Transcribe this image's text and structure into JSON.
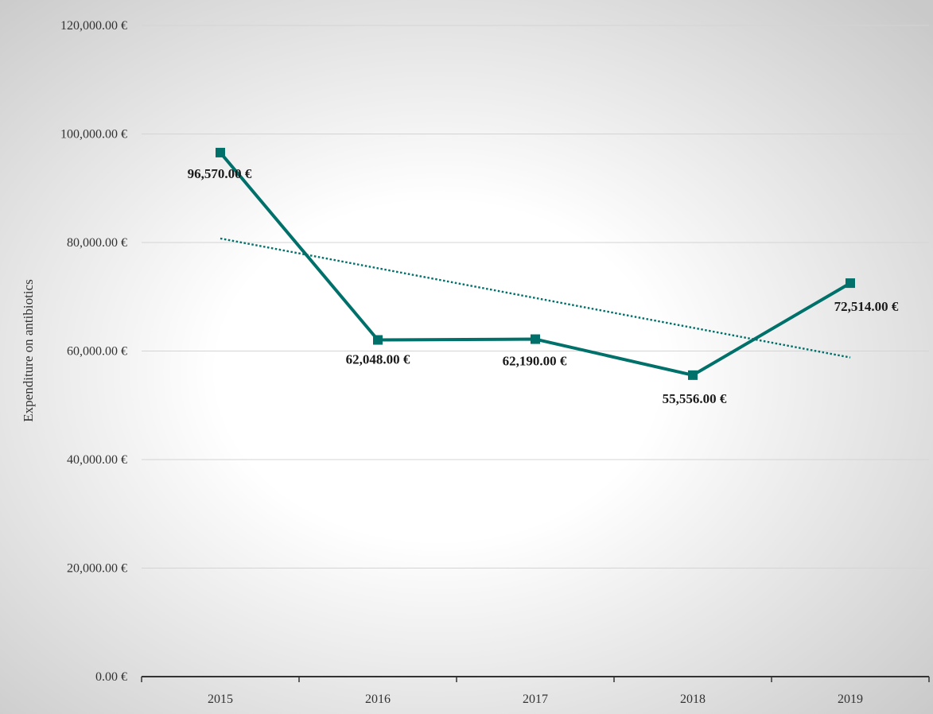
{
  "chart_data": {
    "type": "line",
    "title": "",
    "xlabel": "",
    "ylabel": "Expenditure on antibiotics",
    "categories": [
      "2015",
      "2016",
      "2017",
      "2018",
      "2019"
    ],
    "series": [
      {
        "values": [
          96570,
          62048,
          62190,
          55556,
          72514
        ],
        "data_labels": [
          "96,570.00 €",
          "62,048.00 €",
          "62,190.00 €",
          "55,556.00 €",
          "72,514.00 €"
        ],
        "color": "#00706a",
        "marker": "square"
      }
    ],
    "trendline": {
      "type": "linear",
      "style": "dotted",
      "color": "#00706a",
      "start_value": 80745,
      "end_value": 58812
    },
    "ylim": [
      0,
      120000
    ],
    "y_ticks": [
      0,
      20000,
      40000,
      60000,
      80000,
      100000,
      120000
    ],
    "y_tick_labels": [
      "0.00 €",
      "20,000.00 €",
      "40,000.00 €",
      "60,000.00 €",
      "80,000.00 €",
      "100,000.00 €",
      "120,000.00 €"
    ],
    "grid": true,
    "legend": "none",
    "background": "radial-gradient-white-to-light-gray"
  }
}
